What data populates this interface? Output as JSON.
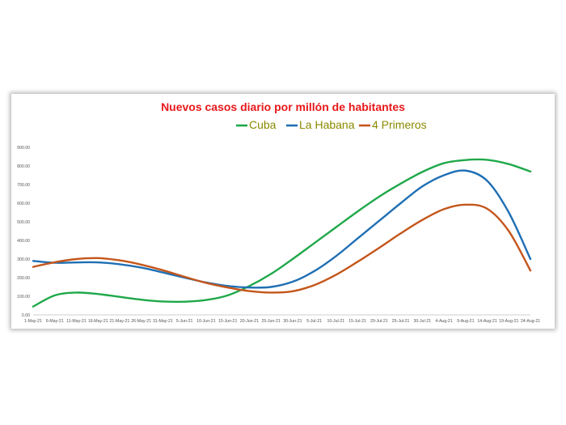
{
  "chart_data": {
    "type": "line",
    "title": "Nuevos casos diario por millón de habitantes",
    "xlabel": "",
    "ylabel": "",
    "ylim": [
      0,
      900
    ],
    "yticks": [
      "0.00",
      "100.00",
      "200.00",
      "300.00",
      "400.00",
      "500.00",
      "600.00",
      "700.00",
      "800.00",
      "900.00"
    ],
    "categories": [
      "1-May-21",
      "6-May-21",
      "11-May-21",
      "16-May-21",
      "21-May-21",
      "26-May-21",
      "31-May-21",
      "5-Jun-21",
      "10-Jun-21",
      "15-Jun-21",
      "20-Jun-21",
      "25-Jun-21",
      "30-Jun-21",
      "5-Jul-21",
      "10-Jul-21",
      "15-Jul-21",
      "20-Jul-21",
      "25-Jul-21",
      "30-Jul-21",
      "4-Aug-21",
      "9-Aug-21",
      "14-Aug-21",
      "19-Aug-21",
      "24-Aug-21"
    ],
    "series": [
      {
        "name": "Cuba",
        "color": "#1fa84a",
        "values": [
          45,
          105,
          120,
          112,
          97,
          82,
          72,
          71,
          80,
          105,
          155,
          220,
          300,
          385,
          470,
          555,
          635,
          705,
          768,
          815,
          832,
          833,
          810,
          770
        ]
      },
      {
        "name": "La Habana",
        "color": "#1f6fb4",
        "values": [
          290,
          280,
          282,
          282,
          272,
          254,
          228,
          200,
          174,
          155,
          147,
          150,
          178,
          235,
          315,
          410,
          505,
          600,
          690,
          750,
          775,
          720,
          550,
          300
        ]
      },
      {
        "name": "4 Primeros",
        "color": "#c4561b",
        "values": [
          258,
          283,
          300,
          305,
          293,
          270,
          240,
          205,
          172,
          147,
          128,
          120,
          127,
          160,
          215,
          285,
          360,
          438,
          510,
          568,
          592,
          570,
          450,
          238
        ]
      }
    ],
    "legend_position": "top-right",
    "grid": false
  }
}
